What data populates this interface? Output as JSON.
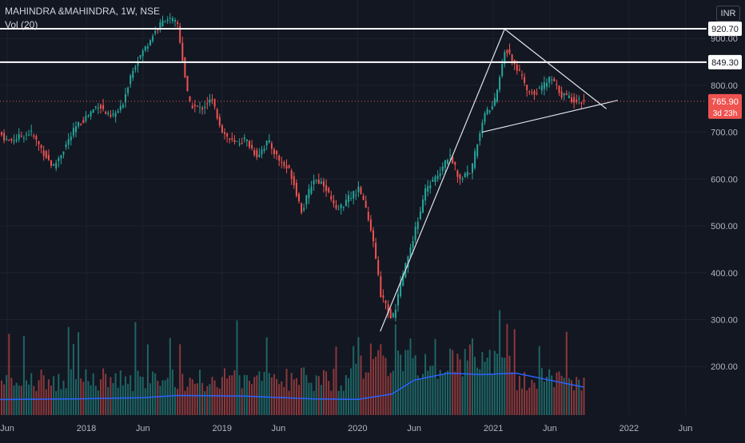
{
  "header": {
    "title": "MAHINDRA &MAHINDRA, 1W, NSE",
    "volume_label": "Vol (20)",
    "currency": "INR"
  },
  "colors": {
    "background": "#131722",
    "up": "#26a69a",
    "down": "#ef5350",
    "volume_ma": "#2962ff",
    "level_line": "#ffffff",
    "trend_line": "#e0e3eb",
    "last_price_line": "#ef5350",
    "axis_text": "#b2b5be"
  },
  "chart_data": {
    "type": "candlestick",
    "title": "MAHINDRA &MAHINDRA, 1W, NSE",
    "y_axis": {
      "side": "right",
      "ticks": [
        "900.00",
        "800.00",
        "700.00",
        "600.00",
        "500.00",
        "400.00",
        "300.00",
        "200.00"
      ],
      "tick_values": [
        900,
        800,
        700,
        600,
        500,
        400,
        300,
        200
      ],
      "range": [
        110,
        960
      ]
    },
    "x_axis": {
      "ticks": [
        "Jun",
        "2018",
        "Jun",
        "2019",
        "Jun",
        "2020",
        "Jun",
        "2021",
        "Jun",
        "2022",
        "Jun"
      ],
      "tick_dates": [
        "2017-06",
        "2018-01",
        "2018-06",
        "2019-01",
        "2019-06",
        "2020-01",
        "2020-06",
        "2021-01",
        "2021-06",
        "2022-01",
        "2022-06"
      ]
    },
    "price_path": [
      [
        "2017-03",
        690
      ],
      [
        "2017-05",
        705
      ],
      [
        "2017-06",
        680
      ],
      [
        "2017-08",
        700
      ],
      [
        "2017-10",
        625
      ],
      [
        "2017-12",
        710
      ],
      [
        "2018-02",
        760
      ],
      [
        "2018-03",
        730
      ],
      [
        "2018-04",
        750
      ],
      [
        "2018-05",
        835
      ],
      [
        "2018-06",
        875
      ],
      [
        "2018-07",
        915
      ],
      [
        "2018-08",
        945
      ],
      [
        "2018-09",
        930
      ],
      [
        "2018-10",
        760
      ],
      [
        "2018-11",
        750
      ],
      [
        "2018-12",
        770
      ],
      [
        "2019-01",
        700
      ],
      [
        "2019-02",
        675
      ],
      [
        "2019-03",
        685
      ],
      [
        "2019-04",
        650
      ],
      [
        "2019-05",
        680
      ],
      [
        "2019-06",
        640
      ],
      [
        "2019-07",
        615
      ],
      [
        "2019-08",
        530
      ],
      [
        "2019-09",
        600
      ],
      [
        "2019-10",
        590
      ],
      [
        "2019-11",
        530
      ],
      [
        "2019-12",
        555
      ],
      [
        "2020-01",
        580
      ],
      [
        "2020-02",
        510
      ],
      [
        "2020-03",
        350
      ],
      [
        "2020-04",
        300
      ],
      [
        "2020-05",
        400
      ],
      [
        "2020-06",
        490
      ],
      [
        "2020-07",
        580
      ],
      [
        "2020-08",
        610
      ],
      [
        "2020-09",
        650
      ],
      [
        "2020-10",
        600
      ],
      [
        "2020-11",
        620
      ],
      [
        "2020-12",
        730
      ],
      [
        "2021-01",
        760
      ],
      [
        "2021-02",
        880
      ],
      [
        "2021-03",
        840
      ],
      [
        "2021-04",
        785
      ],
      [
        "2021-05",
        790
      ],
      [
        "2021-06",
        815
      ],
      [
        "2021-07",
        780
      ],
      [
        "2021-08",
        770
      ],
      [
        "2021-09",
        765.9
      ]
    ],
    "volume_ma_path": [
      [
        "2017-03",
        175
      ],
      [
        "2017-12",
        178
      ],
      [
        "2018-06",
        182
      ],
      [
        "2018-09",
        190
      ],
      [
        "2019-03",
        188
      ],
      [
        "2019-09",
        178
      ],
      [
        "2020-01",
        176
      ],
      [
        "2020-04",
        195
      ],
      [
        "2020-06",
        245
      ],
      [
        "2020-09",
        270
      ],
      [
        "2020-12",
        265
      ],
      [
        "2021-03",
        270
      ],
      [
        "2021-06",
        245
      ],
      [
        "2021-09",
        220
      ]
    ],
    "horizontal_levels": [
      {
        "value": 920.7,
        "label": "920.70"
      },
      {
        "value": 849.3,
        "label": "849.30"
      }
    ],
    "last_price": {
      "value": 765.9,
      "label": "765.90",
      "countdown": "3d 23h"
    },
    "trend_lines": [
      {
        "from": [
          "2020-03",
          275
        ],
        "to": [
          "2021-02",
          920
        ]
      },
      {
        "from": [
          "2021-02",
          920
        ],
        "to": [
          "2021-11",
          750
        ]
      },
      {
        "from": [
          "2020-12",
          700
        ],
        "to": [
          "2021-12",
          768
        ]
      }
    ]
  }
}
